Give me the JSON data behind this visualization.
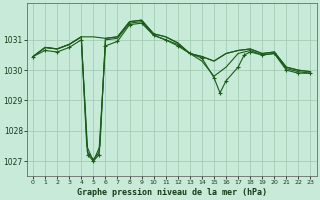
{
  "background_color": "#c8ead8",
  "grid_color": "#9dc8ae",
  "line_color": "#1a5c1a",
  "title": "Graphe pression niveau de la mer (hPa)",
  "xlim": [
    -0.5,
    23.5
  ],
  "ylim": [
    1026.5,
    1032.2
  ],
  "yticks": [
    1027,
    1028,
    1029,
    1030,
    1031
  ],
  "xticks": [
    0,
    1,
    2,
    3,
    4,
    5,
    6,
    7,
    8,
    9,
    10,
    11,
    12,
    13,
    14,
    15,
    16,
    17,
    18,
    19,
    20,
    21,
    22,
    23
  ],
  "s1_x": [
    0,
    1,
    2,
    3,
    4,
    5,
    6,
    7,
    8,
    9,
    10,
    11,
    12,
    13,
    14,
    15,
    16,
    17,
    18,
    19,
    20,
    21,
    22,
    23
  ],
  "s1_y": [
    1030.45,
    1030.75,
    1030.7,
    1030.85,
    1031.1,
    1031.1,
    1031.05,
    1031.1,
    1031.6,
    1031.65,
    1031.2,
    1031.1,
    1030.9,
    1030.55,
    1030.45,
    1030.3,
    1030.55,
    1030.65,
    1030.7,
    1030.55,
    1030.6,
    1030.1,
    1030.0,
    1029.95
  ],
  "s2_x": [
    0,
    1,
    2,
    3,
    4,
    4.45,
    5,
    5.55,
    6,
    7,
    8,
    9,
    10,
    11,
    12,
    13,
    14,
    15,
    16,
    17,
    18,
    19,
    20,
    21,
    22,
    23
  ],
  "s2_y": [
    1030.45,
    1030.75,
    1030.7,
    1030.85,
    1031.1,
    1027.5,
    1027.0,
    1027.5,
    1031.05,
    1031.1,
    1031.6,
    1031.65,
    1031.2,
    1031.1,
    1030.9,
    1030.55,
    1030.45,
    1030.3,
    1030.55,
    1030.65,
    1030.7,
    1030.55,
    1030.6,
    1030.1,
    1030.0,
    1029.95
  ],
  "s3_x": [
    0,
    1,
    2,
    3,
    4,
    4.5,
    5,
    5.5,
    6,
    7,
    8,
    9,
    10,
    11,
    12,
    13,
    14,
    15,
    16,
    17,
    18,
    19,
    20,
    21,
    22,
    23
  ],
  "s3_y": [
    1030.45,
    1030.75,
    1030.7,
    1030.85,
    1031.1,
    1027.3,
    1027.05,
    1027.3,
    1031.0,
    1031.05,
    1031.55,
    1031.6,
    1031.15,
    1031.0,
    1030.85,
    1030.55,
    1030.3,
    1029.8,
    1030.1,
    1030.55,
    1030.65,
    1030.5,
    1030.55,
    1030.05,
    1029.95,
    1029.9
  ],
  "s4_x": [
    0,
    1,
    2,
    3,
    4,
    4.55,
    5,
    5.45,
    6,
    7,
    8,
    9,
    10,
    11,
    12,
    13,
    14,
    15,
    15.5,
    16,
    17,
    17.5,
    18,
    19,
    20,
    21,
    22,
    23
  ],
  "s4_y": [
    1030.45,
    1030.65,
    1030.6,
    1030.75,
    1031.0,
    1027.2,
    1027.0,
    1027.2,
    1030.8,
    1030.95,
    1031.5,
    1031.55,
    1031.15,
    1031.0,
    1030.8,
    1030.55,
    1030.4,
    1029.75,
    1029.25,
    1029.65,
    1030.1,
    1030.5,
    1030.6,
    1030.5,
    1030.55,
    1030.0,
    1029.9,
    1029.9
  ]
}
